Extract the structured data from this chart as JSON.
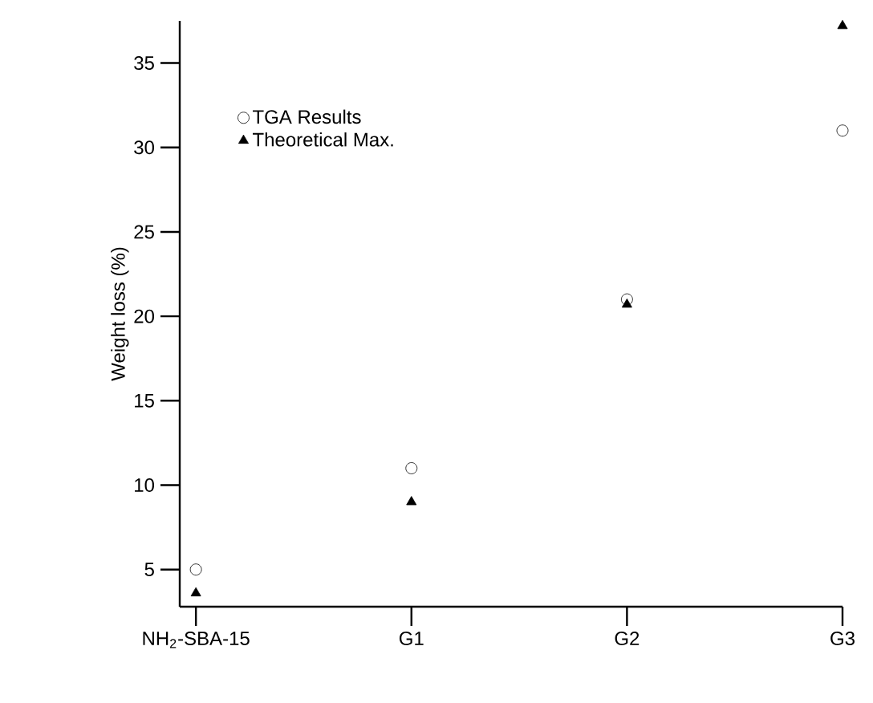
{
  "chart_data": {
    "type": "scatter",
    "ylabel": "Weight loss (%)",
    "categories": [
      "NH$_{2}$-SBA-15",
      "G1",
      "G2",
      "G3"
    ],
    "series": [
      {
        "name": "TGA Results",
        "color": "#000000",
        "marker": "circle",
        "values": [
          5,
          11,
          21,
          31
        ]
      },
      {
        "name": "Theoretical Max.",
        "color": "#000000",
        "marker": "triangle",
        "values": [
          3.6,
          9,
          20.7,
          37.2
        ]
      }
    ],
    "ylim": [
      2.8,
      37.5
    ],
    "yticks": [
      5,
      10,
      15,
      20,
      25,
      30,
      35
    ],
    "grid": false,
    "legend": "top left"
  }
}
